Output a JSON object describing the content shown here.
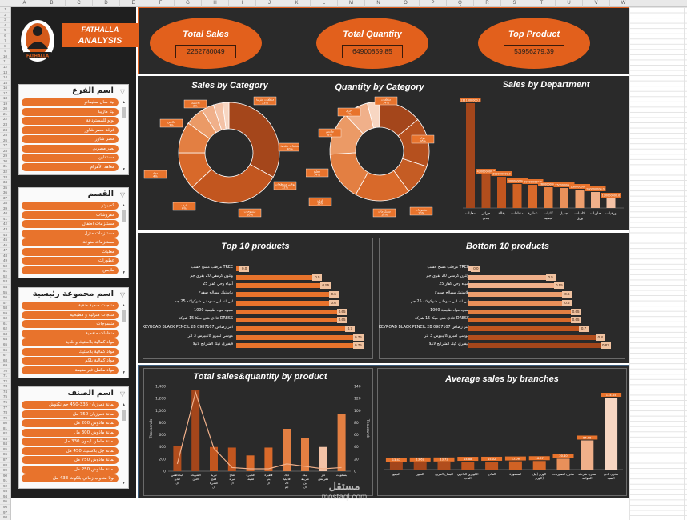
{
  "sheet": {
    "columns": [
      "A",
      "B",
      "C",
      "D",
      "E",
      "F",
      "G",
      "H",
      "I",
      "J",
      "K",
      "L",
      "M",
      "N",
      "O",
      "P",
      "Q",
      "R",
      "S",
      "T",
      "U",
      "V",
      "W"
    ],
    "row_count": 98
  },
  "brand": {
    "line1": "FATHALLA",
    "line2": "ANALYSIS",
    "logo_text": "FATHALLA"
  },
  "slicers": [
    {
      "title": "اسم الفرع",
      "items": [
        "بيتا سال سليمانو",
        "بيتا مازيبا",
        "نونو للمستودعة",
        "غرقة مصر شاور",
        "مصر شاور",
        "نصر مصرين",
        "مستقلين",
        "معاهد الأهرام"
      ]
    },
    {
      "title": "القسم",
      "items": [
        "كمبيوتر",
        "مفروشات",
        "مستلزمات اطفال",
        "مستلزمات منزل",
        "مستلزمات منوعة",
        "معلبات",
        "عطورات",
        "ملابس"
      ]
    },
    {
      "title": "اسم مجموعة رئيسية",
      "items": [
        "منتجات صحية منقية",
        "منتجات منزلية و مطبخية",
        "منسوجات",
        "منظفات منقحية",
        "مواد كمالية بلاستيك وجلدية",
        "مواد كمالية بلاستيك",
        "مواد كمالية بلكم",
        "مواد مكمل غير مقيمة"
      ]
    },
    {
      "title": "اسم الصنف",
      "items": [
        "بمانة دمرزيان 335-450 جم نكتوش",
        "بمانة دمرزيان 750 مل",
        "بمانة ماذوش 200 مل",
        "بمانة ماذوش 300 مل",
        "بمانة حاملن ليمون 330 مل",
        "بمانة جل بلاستيك 450 مل",
        "بمانة ماذوش 750 مل",
        "بمانة ماذوش 250 مل",
        "بوتا مندوب زماني بلكوت 433 مل"
      ]
    }
  ],
  "kpis": [
    {
      "title": "Total Sales",
      "value": "2252780049"
    },
    {
      "title": "Total Quantity",
      "value": "64900859.85"
    },
    {
      "title": "Top Product",
      "value": "53956279.39"
    }
  ],
  "sales_by_category": {
    "title": "Sales by Category",
    "chart_data": {
      "type": "pie",
      "values": [
        33,
        30,
        12,
        10,
        6,
        4,
        3,
        2
      ],
      "colors": [
        "#a4461b",
        "#c2561f",
        "#d8692a",
        "#e37f42",
        "#eb9a66",
        "#f0b08a",
        "#f3c2a6",
        "#f7d6c2"
      ],
      "labels": [
        "منظفات منزلية 33%",
        "منظفات منقحية 30%",
        "بواقي مسطحات 12%",
        "منسوجات 10%",
        "غرف 6%",
        "مواد 4%",
        "ملابس 3%",
        "بلاستيك 2%"
      ]
    }
  },
  "quantity_by_category": {
    "title": "Quantity by Category",
    "chart_data": {
      "type": "pie",
      "values": [
        14,
        16,
        10,
        18,
        16,
        14,
        8,
        4
      ],
      "colors": [
        "#a4461b",
        "#b5501e",
        "#c55c24",
        "#d8692a",
        "#e37f42",
        "#eb9a66",
        "#f0b08a",
        "#f7d6c2"
      ],
      "labels": [
        "منظفات 14%",
        "مواد 16%",
        "منسوجات 10%",
        "مستلزمات 18%",
        "غرف 16%",
        "مطبخ 14%",
        "ملابس 8%",
        "أخرى 4%"
      ]
    }
  },
  "sales_by_department": {
    "title": "Sales by Department",
    "chart_data": {
      "type": "bar",
      "categories": [
        "معلبات",
        "جزائر بلدي",
        "بقالة",
        "منظفات",
        "عطارة",
        "كاتبات تجميد",
        "تجميل",
        "كاسات ورق",
        "حلويات",
        "ورقيات"
      ],
      "values": [
        1311000000,
        420000000,
        390000000,
        300000000,
        290000000,
        260000000,
        250000000,
        230000000,
        200000000,
        120000000
      ],
      "data_labels": [
        "1311000000.0",
        "420000000.0",
        "390000000.0",
        "300000000.0",
        "290000000.0",
        "260000000.0",
        "250000000.0",
        "230000000.0",
        "200000000.0",
        "120000000.0"
      ]
    }
  },
  "top10": {
    "title": "Top 10 products",
    "chart_data": {
      "type": "bar",
      "categories": [
        "مرطب مسح خشب TREE",
        "ولتون كرمفي 20 بقرى جم",
        "أمياه وحي كفار 25",
        "بلاستيك مسالح صفوح",
        "ابي اند ابي سوداني شوكولاته 25 جم",
        "سبوه مواد طبيعية 1000",
        "غاذي شنج ميكا 15 شركة DRESS",
        "KEYROAD BLACK PENCIL 2B 0987107 انثر رصاص",
        "موسي لمبرو كاتيبيوس 3 لتر",
        "فيفيري كيك الشرايج لانيلا"
      ],
      "values": [
        0.05,
        0.5,
        0.55,
        0.6,
        0.6,
        0.65,
        0.65,
        0.7,
        0.75,
        0.75
      ],
      "data_labels": [
        "0.0",
        "0.5",
        "0.55",
        "0.6",
        "0.6",
        "0.65",
        "0.65",
        "0.7",
        "0.75",
        "0.75"
      ]
    }
  },
  "bottom10": {
    "title": "Bottom 10 products",
    "chart_data": {
      "type": "bar",
      "categories": [
        "مرطب مسح خشب TREE",
        "ولتون كرمفي 20 بقرى جم",
        "أمياه وحي كفار 25",
        "بلاستيك مسالح صفوح",
        "ابي اند ابي سوداني شوكولاته 25 جم",
        "سبوه مواد طبيعية 1000",
        "غاذي شنج ميكا 15 شركة DRESS",
        "KEYROAD BLACK PENCIL 2B 0987107 انثر رصاص",
        "موسي لمبرو كاتيبيوس 3 لتر",
        "فيفيري كيك الشرايج لانيلا"
      ],
      "values": [
        0.05,
        0.5,
        0.55,
        0.6,
        0.6,
        0.65,
        0.65,
        0.7,
        0.8,
        0.83
      ],
      "data_labels": [
        "0.0",
        "0.5",
        "0.55",
        "0.6",
        "0.6",
        "0.65",
        "0.65",
        "0.7",
        "0.8",
        "0.83"
      ]
    }
  },
  "total_sales_qty": {
    "title": "Total sales&quantity by product",
    "chart_data": {
      "type": "bar",
      "y_label": "Thousands",
      "ylim": [
        0,
        1400
      ],
      "y_ticks": [
        "0",
        "200",
        "400",
        "600",
        "800",
        "1,000",
        "1,200",
        "1,400"
      ],
      "y2_ticks": [
        "0",
        "20",
        "40",
        "60",
        "80",
        "100",
        "120",
        "140"
      ],
      "categories": [
        "البطاطس التابع ال",
        "الشريحة اللبن",
        "تبريد قمح الشيء ال",
        "تفاح تبريد ال",
        "فطيرة لطيف",
        "فطيرة بتر ال",
        "كيك فانيليا 25 جم",
        "كيكة شريط بن ال",
        "كنز مقرمش",
        "بسكويت"
      ],
      "series": [
        {
          "name": "",
          "type": "bar",
          "values": [
            420,
            1340,
            400,
            390,
            260,
            390,
            700,
            550,
            400,
            950
          ]
        },
        {
          "name": "",
          "type": "line",
          "values": [
            120,
            1300,
            380,
            60,
            40,
            40,
            120,
            80,
            40,
            60
          ]
        }
      ]
    }
  },
  "avg_branches": {
    "title": "Average sales by branches",
    "chart_data": {
      "type": "bar",
      "categories": [
        "الجمع",
        "العبور",
        "البطاح المريح",
        "الكوبري الدائري الناب",
        "المادع",
        "المعمورة",
        "الهرم (بيل الهرم)",
        "مخزن الصورنات",
        "مخزن شرطة الحوامة",
        "مخزن نادي الصيد"
      ],
      "values": [
        13.47,
        13.62,
        13.72,
        14.88,
        15.02,
        15.58,
        16.07,
        20.4,
        54.65,
        134.65
      ],
      "data_labels": [
        "13.47",
        "13.62",
        "13.72",
        "14.88",
        "15.02",
        "15.58",
        "16.07",
        "20.40",
        "54.65",
        "134.65"
      ]
    }
  },
  "watermark": {
    "line1": "مستقل",
    "line2": "mostaql.com"
  }
}
